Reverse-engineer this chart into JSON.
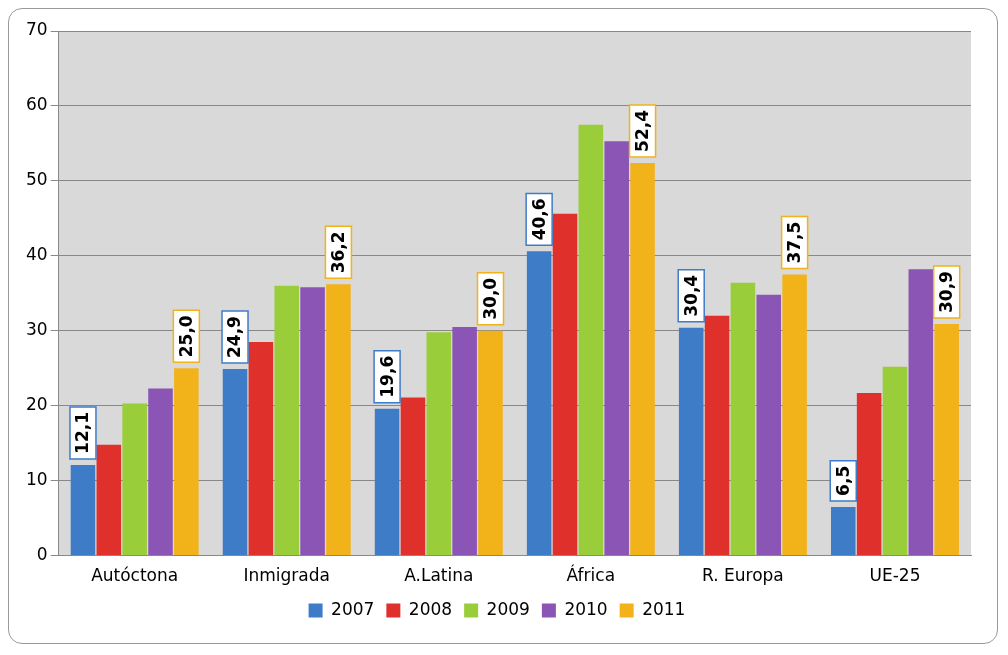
{
  "chart_data": {
    "type": "bar",
    "categories": [
      "Autóctona",
      "Inmigrada",
      "A.Latina",
      "África",
      "R. Europa",
      "UE-25"
    ],
    "series": [
      {
        "name": "2007",
        "color": "#3f7cc8",
        "values": [
          12.1,
          24.9,
          19.6,
          40.6,
          30.4,
          6.5
        ],
        "value_labels": [
          "12,1",
          "24,9",
          "19,6",
          "40,6",
          "30,4",
          "6,5"
        ]
      },
      {
        "name": "2008",
        "color": "#e0302c",
        "values": [
          14.8,
          28.5,
          21.1,
          45.6,
          32.0,
          21.7
        ]
      },
      {
        "name": "2009",
        "color": "#9acd3a",
        "values": [
          20.3,
          36.0,
          29.8,
          57.5,
          36.4,
          25.2
        ]
      },
      {
        "name": "2010",
        "color": "#8a55b5",
        "values": [
          22.3,
          35.8,
          30.5,
          55.3,
          34.8,
          38.2
        ]
      },
      {
        "name": "2011",
        "color": "#f2b21a",
        "values": [
          25.0,
          36.2,
          30.0,
          52.4,
          37.5,
          30.9
        ],
        "value_labels": [
          "25,0",
          "36,2",
          "30,0",
          "52,4",
          "37,5",
          "30,9"
        ]
      }
    ],
    "ylim": [
      0,
      70
    ],
    "yticks": [
      0,
      10,
      20,
      30,
      40,
      50,
      60,
      70
    ],
    "grid": "y",
    "legend": "bottom"
  }
}
